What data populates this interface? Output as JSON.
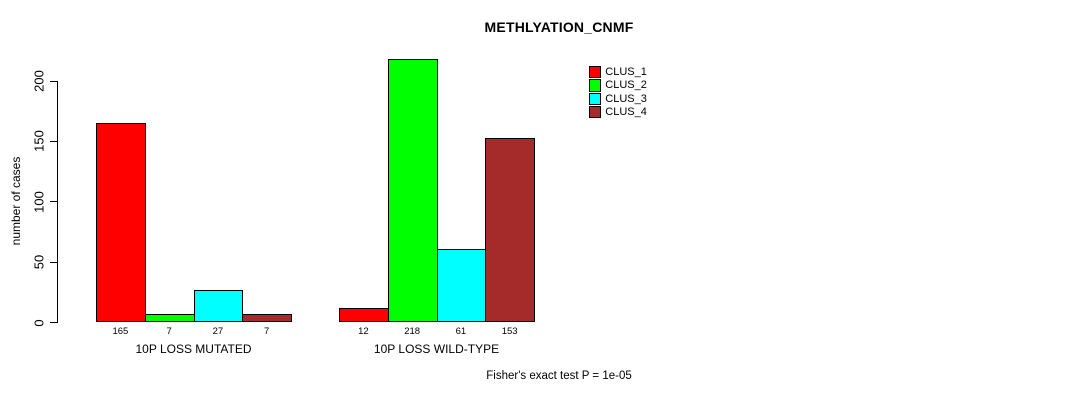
{
  "chart_data": {
    "type": "bar",
    "title": "METHLYATION_CNMF",
    "ylabel": "number of cases",
    "xlabel": "",
    "ylim": [
      0,
      200
    ],
    "yticks": [
      0,
      50,
      100,
      150,
      200
    ],
    "grid": false,
    "legend_position": "top-right",
    "categories": [
      "10P LOSS MUTATED",
      "10P LOSS WILD-TYPE"
    ],
    "series": [
      {
        "name": "CLUS_1",
        "color": "#ff0000"
      },
      {
        "name": "CLUS_2",
        "color": "#00ff00"
      },
      {
        "name": "CLUS_3",
        "color": "#00ffff"
      },
      {
        "name": "CLUS_4",
        "color": "#a52a2a"
      }
    ],
    "groups": [
      {
        "label": "10P LOSS MUTATED",
        "values": [
          165,
          7,
          27,
          7
        ]
      },
      {
        "label": "10P LOSS WILD-TYPE",
        "values": [
          12,
          218,
          61,
          153
        ]
      }
    ],
    "show_value_labels": true,
    "footnote": "Fisher's exact test P = 1e-05"
  }
}
